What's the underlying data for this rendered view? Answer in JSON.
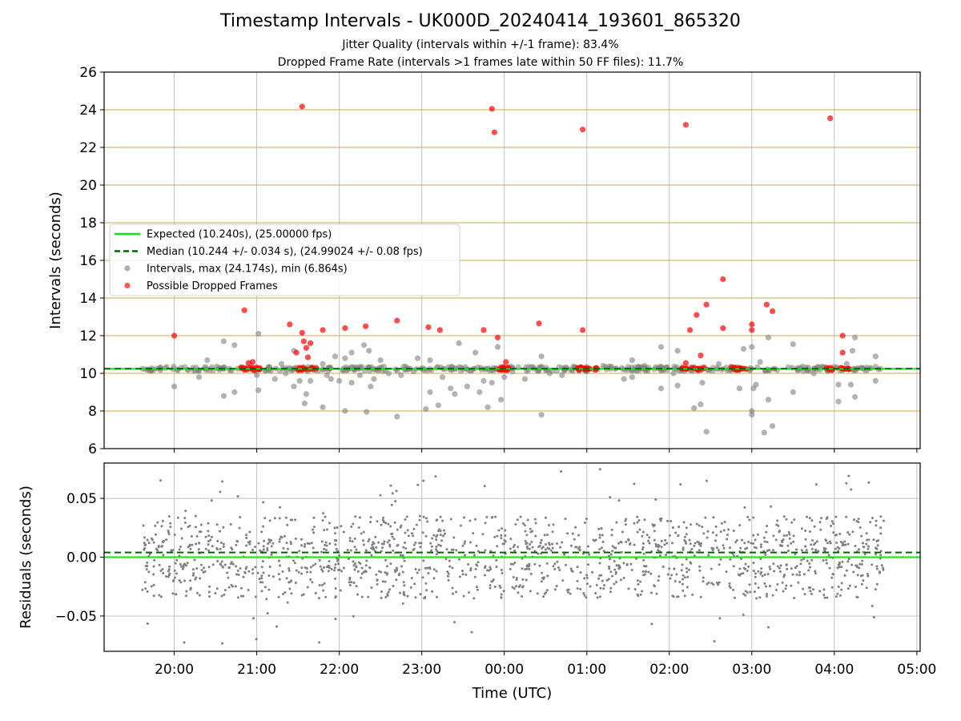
{
  "figure": {
    "title": "Timestamp Intervals - UK000D_20240414_193601_865320",
    "subtitle_1": "Jitter Quality (intervals within +/-1 frame): 83.4%",
    "subtitle_2": "Dropped Frame Rate (intervals >1 frames late within 50 FF files): 11.7%",
    "xlabel": "Time (UTC)",
    "x_tick_labels": [
      "20:00",
      "21:00",
      "22:00",
      "23:00",
      "00:00",
      "01:00",
      "02:00",
      "03:00",
      "04:00",
      "05:00"
    ]
  },
  "colors": {
    "expected": "#00ee00",
    "median": "#006400",
    "intervals": "#808080",
    "dropped": "#ff0000",
    "hgrid": "#c8aa50",
    "vgrid": "#c0c0c0"
  },
  "chart_data": [
    {
      "type": "scatter",
      "panel": "top",
      "ylabel": "Intervals (seconds)",
      "ylim": [
        6,
        26
      ],
      "yticks": [
        6,
        8,
        10,
        12,
        14,
        16,
        18,
        20,
        22,
        24,
        26
      ],
      "x_unit": "hours since 20:00 UTC",
      "xlim": [
        -0.85,
        9.04
      ],
      "grid": true,
      "legend_placement": "center-left",
      "expected": {
        "name": "Expected (10.240s), (25.00000 fps)",
        "value": 10.24
      },
      "median": {
        "name": "Median (10.244 +/- 0.034 s), (24.99024 +/- 0.08 fps)",
        "value": 10.244
      },
      "series": [
        {
          "name": "Intervals, max (24.174s), min (6.864s)",
          "points": [
            [
              -0.0,
              9.3
            ],
            [
              0.3,
              9.8
            ],
            [
              0.4,
              10.7
            ],
            [
              0.6,
              11.7
            ],
            [
              0.6,
              8.8
            ],
            [
              0.73,
              11.5
            ],
            [
              0.73,
              9.0
            ],
            [
              1.0,
              9.9
            ],
            [
              1.02,
              12.1
            ],
            [
              1.02,
              9.1
            ],
            [
              1.13,
              10.2
            ],
            [
              1.22,
              9.7
            ],
            [
              1.3,
              10.5
            ],
            [
              1.35,
              10.0
            ],
            [
              1.45,
              9.3
            ],
            [
              1.45,
              11.2
            ],
            [
              1.52,
              9.6
            ],
            [
              1.58,
              8.4
            ],
            [
              1.6,
              8.9
            ],
            [
              1.65,
              9.6
            ],
            [
              1.8,
              10.5
            ],
            [
              1.8,
              8.2
            ],
            [
              1.85,
              9.9
            ],
            [
              1.9,
              9.7
            ],
            [
              1.95,
              10.9
            ],
            [
              2.0,
              9.6
            ],
            [
              2.07,
              10.8
            ],
            [
              2.07,
              8.0
            ],
            [
              2.15,
              11.1
            ],
            [
              2.15,
              9.5
            ],
            [
              2.25,
              9.9
            ],
            [
              2.3,
              11.5
            ],
            [
              2.33,
              7.95
            ],
            [
              2.36,
              11.2
            ],
            [
              2.38,
              9.3
            ],
            [
              2.42,
              9.7
            ],
            [
              2.5,
              10.7
            ],
            [
              2.6,
              10.0
            ],
            [
              2.7,
              7.7
            ],
            [
              2.75,
              9.9
            ],
            [
              2.9,
              10.1
            ],
            [
              2.95,
              10.8
            ],
            [
              3.05,
              8.1
            ],
            [
              3.1,
              9.0
            ],
            [
              3.1,
              10.7
            ],
            [
              3.2,
              8.3
            ],
            [
              3.25,
              9.8
            ],
            [
              3.35,
              9.2
            ],
            [
              3.4,
              8.9
            ],
            [
              3.45,
              11.6
            ],
            [
              3.55,
              9.3
            ],
            [
              3.65,
              11.1
            ],
            [
              3.7,
              9.0
            ],
            [
              3.75,
              9.6
            ],
            [
              3.8,
              8.2
            ],
            [
              3.85,
              9.5
            ],
            [
              3.92,
              11.4
            ],
            [
              3.96,
              8.6
            ],
            [
              4.0,
              9.8
            ],
            [
              4.1,
              10.1
            ],
            [
              4.25,
              9.7
            ],
            [
              4.45,
              10.9
            ],
            [
              4.45,
              7.8
            ],
            [
              4.55,
              10.0
            ],
            [
              4.7,
              9.9
            ],
            [
              5.0,
              10.1
            ],
            [
              5.2,
              10.4
            ],
            [
              5.45,
              9.7
            ],
            [
              5.55,
              10.7
            ],
            [
              5.55,
              9.8
            ],
            [
              5.7,
              10.4
            ],
            [
              5.9,
              9.2
            ],
            [
              5.9,
              11.4
            ],
            [
              6.05,
              10.0
            ],
            [
              6.1,
              11.2
            ],
            [
              6.1,
              9.35
            ],
            [
              6.3,
              8.15
            ],
            [
              6.38,
              8.35
            ],
            [
              6.4,
              9.5
            ],
            [
              6.45,
              6.9
            ],
            [
              6.6,
              10.5
            ],
            [
              6.85,
              9.2
            ],
            [
              6.9,
              11.3
            ],
            [
              7.0,
              11.4
            ],
            [
              7.0,
              8.0
            ],
            [
              7.0,
              7.8
            ],
            [
              7.02,
              9.2
            ],
            [
              7.05,
              9.4
            ],
            [
              7.1,
              10.6
            ],
            [
              7.15,
              6.85
            ],
            [
              7.2,
              11.9
            ],
            [
              7.2,
              8.6
            ],
            [
              7.25,
              7.2
            ],
            [
              7.5,
              11.55
            ],
            [
              7.5,
              9.0
            ],
            [
              7.75,
              10.0
            ],
            [
              8.05,
              9.4
            ],
            [
              8.05,
              8.5
            ],
            [
              8.15,
              10.5
            ],
            [
              8.2,
              9.4
            ],
            [
              8.22,
              11.2
            ],
            [
              8.25,
              8.75
            ],
            [
              8.25,
              11.9
            ],
            [
              8.5,
              10.9
            ],
            [
              8.5,
              9.6
            ]
          ]
        },
        {
          "name": "Possible Dropped Frames",
          "points": [
            [
              0.0,
              12.0
            ],
            [
              0.85,
              13.35
            ],
            [
              0.9,
              10.55
            ],
            [
              0.95,
              10.6
            ],
            [
              1.4,
              12.6
            ],
            [
              1.48,
              11.1
            ],
            [
              1.55,
              12.15
            ],
            [
              1.57,
              11.7
            ],
            [
              1.6,
              11.35
            ],
            [
              1.62,
              10.85
            ],
            [
              1.65,
              11.6
            ],
            [
              1.8,
              12.3
            ],
            [
              2.07,
              12.4
            ],
            [
              2.32,
              12.5
            ],
            [
              2.7,
              12.8
            ],
            [
              3.08,
              12.45
            ],
            [
              3.22,
              12.3
            ],
            [
              3.75,
              12.3
            ],
            [
              3.85,
              24.05
            ],
            [
              3.88,
              22.8
            ],
            [
              3.92,
              11.9
            ],
            [
              4.02,
              10.6
            ],
            [
              4.42,
              12.65
            ],
            [
              4.95,
              12.3
            ],
            [
              4.95,
              22.95
            ],
            [
              1.55,
              24.17
            ],
            [
              6.2,
              23.2
            ],
            [
              6.2,
              10.55
            ],
            [
              6.25,
              12.3
            ],
            [
              6.33,
              13.1
            ],
            [
              6.38,
              10.95
            ],
            [
              6.45,
              13.65
            ],
            [
              6.65,
              15.0
            ],
            [
              6.65,
              12.4
            ],
            [
              7.0,
              12.3
            ],
            [
              7.0,
              12.6
            ],
            [
              7.18,
              13.65
            ],
            [
              7.25,
              13.3
            ],
            [
              7.95,
              23.55
            ],
            [
              8.1,
              12.0
            ],
            [
              8.1,
              11.1
            ]
          ],
          "clusters_near_10_25": [
            [
              0.8,
              1.05
            ],
            [
              1.5,
              1.75
            ],
            [
              3.85,
              4.05
            ],
            [
              4.88,
              5.12
            ],
            [
              6.15,
              6.45
            ],
            [
              6.7,
              6.95
            ],
            [
              7.9,
              8.2
            ]
          ]
        }
      ]
    },
    {
      "type": "scatter",
      "panel": "bottom",
      "ylabel": "Residuals (seconds)",
      "ylim": [
        -0.08,
        0.08
      ],
      "y_tick_labels": [
        "−0.05",
        "0.00",
        "0.05"
      ],
      "yticks": [
        -0.05,
        0.0,
        0.05
      ],
      "xlim": [
        -0.85,
        9.04
      ],
      "grid": true,
      "expected_line": 0.0,
      "median_line": 0.004,
      "series": [
        {
          "name": "Residuals",
          "x_range": [
            -0.4,
            8.6
          ],
          "typical_values": [
            0.02,
            0.0,
            -0.02
          ],
          "envelope": 0.05
        }
      ]
    }
  ]
}
